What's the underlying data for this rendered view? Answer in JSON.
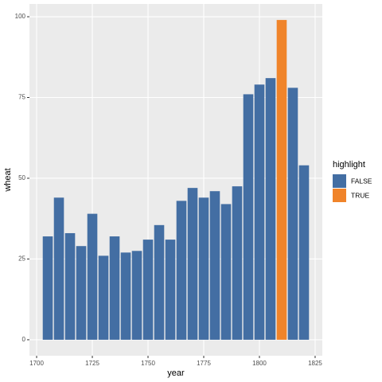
{
  "chart_data": {
    "type": "bar",
    "x_label": "year",
    "y_label": "wheat",
    "legend_title": "highlight",
    "x": [
      1705,
      1710,
      1715,
      1720,
      1725,
      1730,
      1735,
      1740,
      1745,
      1750,
      1755,
      1760,
      1765,
      1770,
      1775,
      1780,
      1785,
      1790,
      1795,
      1800,
      1805,
      1810,
      1815,
      1820
    ],
    "series": [
      {
        "name": "FALSE",
        "color": "#436ea3",
        "values": [
          32,
          44,
          33,
          29,
          39,
          26,
          32,
          27,
          27.5,
          31,
          35.5,
          31,
          43,
          47,
          44,
          46,
          42,
          47.5,
          76,
          79,
          81,
          null,
          78,
          54
        ]
      },
      {
        "name": "TRUE",
        "color": "#f0842a",
        "values": [
          null,
          null,
          null,
          null,
          null,
          null,
          null,
          null,
          null,
          null,
          null,
          null,
          null,
          null,
          null,
          null,
          null,
          null,
          null,
          null,
          null,
          99,
          null,
          null
        ]
      }
    ],
    "bar_width": 4.5,
    "xlim": [
      1696.775,
      1828.225
    ],
    "ylim": [
      -4.95,
      103.95
    ],
    "xticks": [
      1700,
      1725,
      1750,
      1775,
      1800,
      1825
    ],
    "yticks": [
      0,
      25,
      50,
      75,
      100
    ],
    "grid": true,
    "legend_position": "right"
  }
}
